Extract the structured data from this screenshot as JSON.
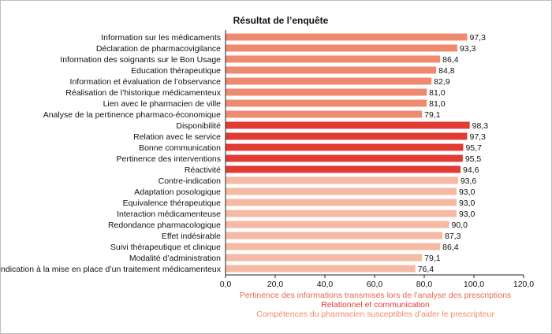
{
  "chart_data": {
    "type": "bar",
    "orientation": "horizontal",
    "title": "Résultat de l’enquête",
    "xlim": [
      0,
      120
    ],
    "xticks": [
      "0,0",
      "20,0",
      "40,0",
      "60,0",
      "80,0",
      "100,0",
      "120,0"
    ],
    "grid": false,
    "legend_position": "bottom",
    "series": [
      {
        "name": "Pertinence des informations transmises lors de l’analyse des prescriptions",
        "color": "#f08a6f",
        "categories": [
          "Information sur les médicaments",
          "Déclaration de pharmacovigilance",
          "Information des soignants sur le Bon Usage",
          "Education thérapeutique",
          "Information et évaluation de l’observance",
          "Réalisation de l’historique médicamenteux",
          "Lien avec le pharmacien de ville",
          "Analyse de la pertinence pharmaco-économique"
        ],
        "values": [
          97.3,
          93.3,
          86.4,
          84.8,
          82.9,
          81.0,
          81.0,
          79.1
        ],
        "labels": [
          "97,3",
          "93,3",
          "86,4",
          "84,8",
          "82,9",
          "81,0",
          "81,0",
          "79,1"
        ]
      },
      {
        "name": "Relationnel et communication",
        "color": "#e13b32",
        "categories": [
          "Disponibilité",
          "Relation avec le service",
          "Bonne communication",
          "Pertinence des interventions",
          "Réactivité"
        ],
        "values": [
          98.3,
          97.3,
          95.7,
          95.5,
          94.6
        ],
        "labels": [
          "98,3",
          "97,3",
          "95,7",
          "95,5",
          "94,6"
        ]
      },
      {
        "name": "Compétences du pharmacien susceptibles d’aider le prescripteur",
        "color": "#f6b9a3",
        "categories": [
          "Contre-indication",
          "Adaptation posologique",
          "Equivalence thérapeutique",
          "Interaction médicamenteuse",
          "Redondance pharmacologique",
          "Effet indésirable",
          "Suivi thérapeutique et clinique",
          "Modalité d’administration",
          "Indication à la mise en place d’un traitement médicamenteux"
        ],
        "values": [
          93.6,
          93.0,
          93.0,
          93.0,
          90.0,
          87.3,
          86.4,
          79.1,
          76.4
        ],
        "labels": [
          "93,6",
          "93,0",
          "93,0",
          "93,0",
          "90,0",
          "87,3",
          "86,4",
          "79,1",
          "76,4"
        ]
      }
    ],
    "legend_colors": [
      "#e8674e",
      "#e13b32",
      "#f08a6f"
    ]
  }
}
